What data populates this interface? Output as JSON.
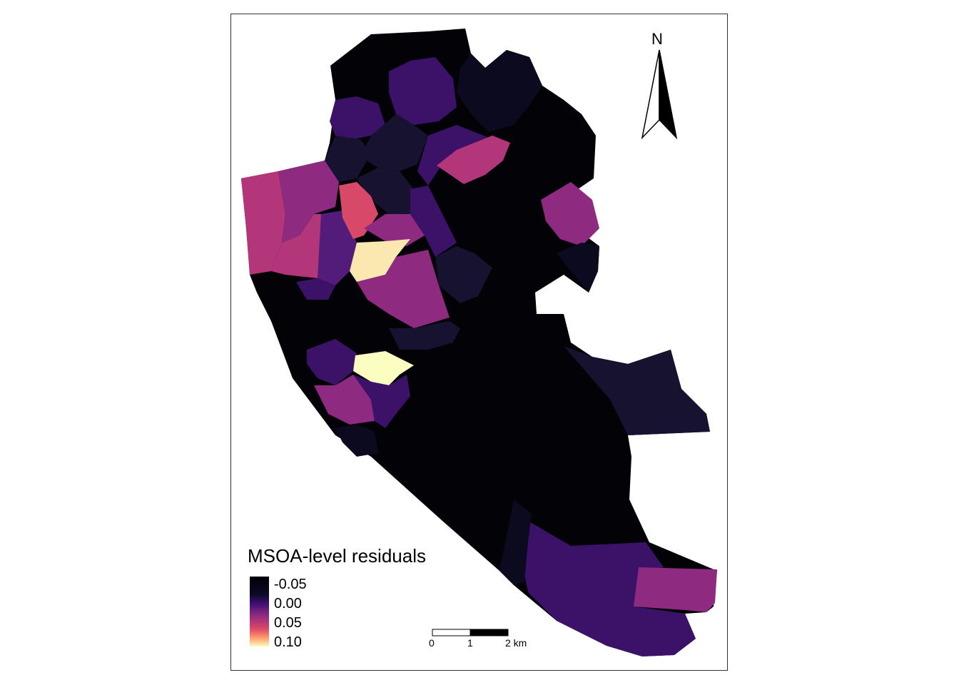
{
  "legend": {
    "title": "MSOA-level residuals",
    "breaks": [
      "-0.05",
      "0.00",
      "0.05",
      "0.10"
    ],
    "palette": [
      "#000004",
      "#0c0926",
      "#3b0f70",
      "#8c2981",
      "#de4968",
      "#fe9f6d",
      "#fcfdbf"
    ]
  },
  "north_arrow": {
    "label": "N"
  },
  "scale_bar": {
    "ticks": [
      "0",
      "1",
      "2 km"
    ]
  },
  "colors": {
    "darkest": "#020207",
    "dark_navy": "#0b0a1f",
    "navy": "#16122f",
    "deep_purple": "#3b1268",
    "purple": "#531c7a",
    "magenta": "#8e2a80",
    "pink": "#b4367a",
    "coral": "#d84868",
    "cream": "#fbe8b0",
    "pale_yellow": "#fcfdc0"
  }
}
